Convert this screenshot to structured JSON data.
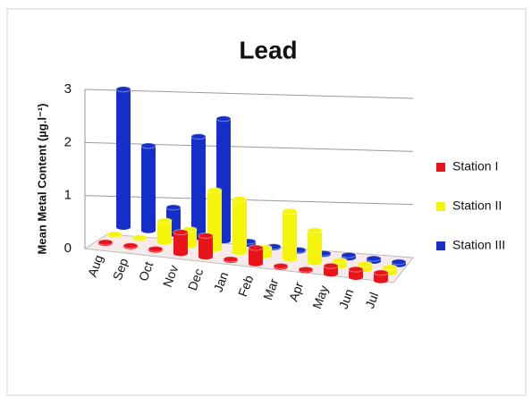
{
  "chart_data": {
    "type": "bar3d",
    "title": "Lead",
    "ylabel": "Mean Metal Content (µg.l⁻¹)",
    "categories": [
      "Aug",
      "Sep",
      "Oct",
      "Nov",
      "Dec",
      "Jan",
      "Feb",
      "Mar",
      "Apr",
      "May",
      "Jun",
      "Jul"
    ],
    "series": [
      {
        "name": "Station I",
        "color": "#e8141a",
        "values": [
          0.02,
          0.02,
          0.02,
          0.4,
          0.4,
          0.02,
          0.3,
          0.02,
          0.02,
          0.15,
          0.15,
          0.15
        ]
      },
      {
        "name": "Station II",
        "color": "#f5f50c",
        "values": [
          0.02,
          0.02,
          0.4,
          0.3,
          1.1,
          1.0,
          0.15,
          0.9,
          0.6,
          0.1,
          0.1,
          0.1
        ]
      },
      {
        "name": "Station III",
        "color": "#1530c8",
        "values": [
          2.6,
          1.6,
          0.5,
          1.9,
          2.3,
          0.05,
          0.02,
          0.02,
          0.02,
          0.05,
          0.05,
          0.05
        ]
      }
    ],
    "ylim": [
      0,
      3
    ],
    "yticks": [
      0,
      1,
      2,
      3
    ],
    "grid": true,
    "legend": "right"
  }
}
